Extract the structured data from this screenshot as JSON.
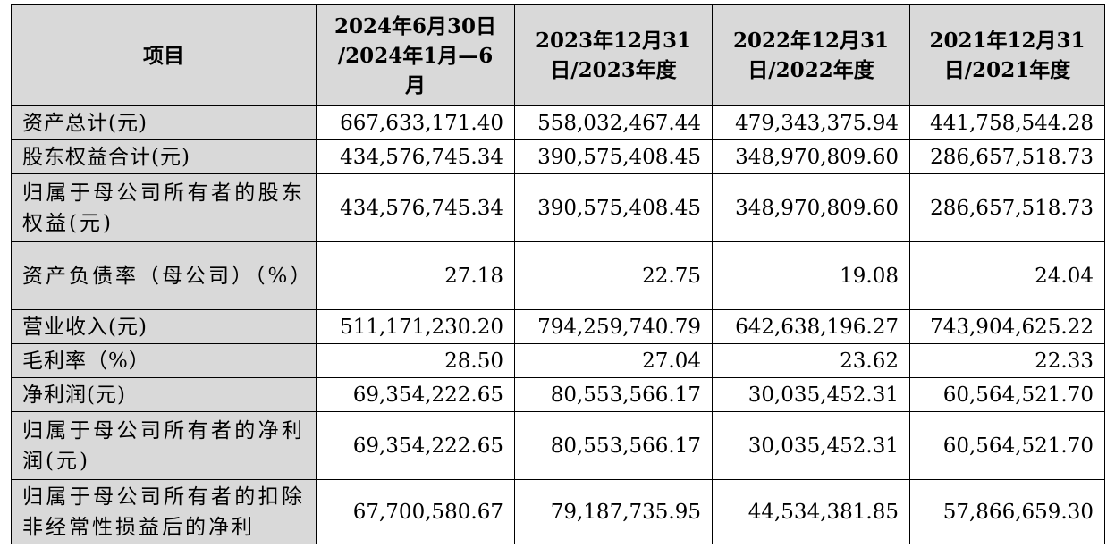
{
  "table": {
    "headers": [
      "项目",
      "2024年6月30日\n/2024年1月—6\n月",
      "2023年12月31\n日/2023年度",
      "2022年12月31\n日/2022年度",
      "2021年12月31\n日/2021年度"
    ],
    "rows": [
      {
        "label": "资产总计(元)",
        "values": [
          "667,633,171.40",
          "558,032,467.44",
          "479,343,375.94",
          "441,758,544.28"
        ]
      },
      {
        "label": "股东权益合计(元)",
        "values": [
          "434,576,745.34",
          "390,575,408.45",
          "348,970,809.60",
          "286,657,518.73"
        ]
      },
      {
        "label": "归属于母公司所有者的股东权益(元)",
        "values": [
          "434,576,745.34",
          "390,575,408.45",
          "348,970,809.60",
          "286,657,518.73"
        ]
      },
      {
        "label": "资产负债率（母公司）（%）",
        "values": [
          "27.18",
          "22.75",
          "19.08",
          "24.04"
        ]
      },
      {
        "label": "营业收入(元)",
        "values": [
          "511,171,230.20",
          "794,259,740.79",
          "642,638,196.27",
          "743,904,625.22"
        ]
      },
      {
        "label": "毛利率（%）",
        "values": [
          "28.50",
          "27.04",
          "23.62",
          "22.33"
        ]
      },
      {
        "label": "净利润(元)",
        "values": [
          "69,354,222.65",
          "80,553,566.17",
          "30,035,452.31",
          "60,564,521.70"
        ]
      },
      {
        "label": "归属于母公司所有者的净利润(元)",
        "values": [
          "69,354,222.65",
          "80,553,566.17",
          "30,035,452.31",
          "60,564,521.70"
        ]
      },
      {
        "label": "归属于母公司所有者的扣除非经常性损益后的净利",
        "values": [
          "67,700,580.67",
          "79,187,735.95",
          "44,534,381.85",
          "57,866,659.30"
        ]
      }
    ]
  }
}
